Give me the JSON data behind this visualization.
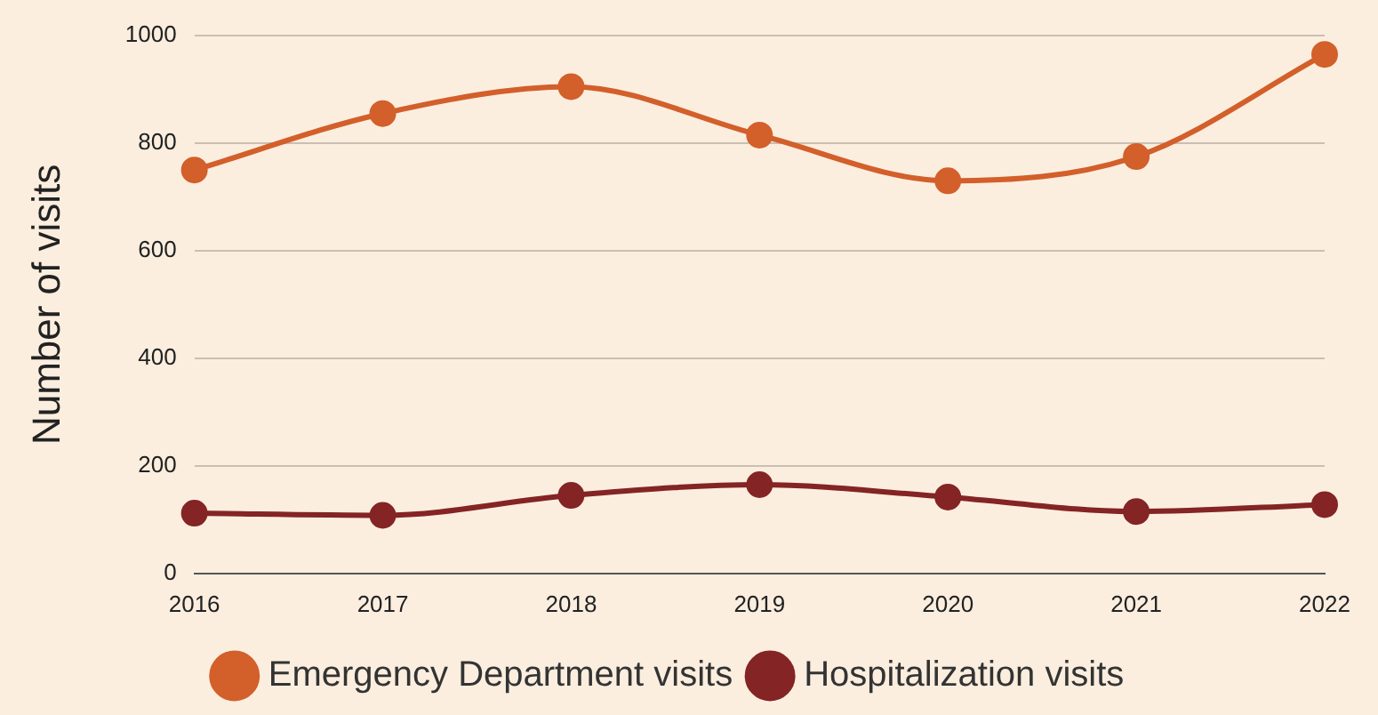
{
  "chart_data": {
    "type": "line",
    "ylabel": "Number of visits",
    "categories": [
      "2016",
      "2017",
      "2018",
      "2019",
      "2020",
      "2021",
      "2022"
    ],
    "series": [
      {
        "name": "Emergency Department visits",
        "color": "#d35f2a",
        "values": [
          750,
          855,
          905,
          815,
          730,
          775,
          965
        ]
      },
      {
        "name": "Hospitalization visits",
        "color": "#842424",
        "values": [
          112,
          108,
          145,
          165,
          142,
          115,
          128
        ]
      }
    ],
    "ylim": [
      0,
      1000
    ],
    "yticks": [
      0,
      200,
      400,
      600,
      800,
      1000
    ],
    "grid": "y",
    "legend": "bottom",
    "marker": "circle",
    "line_style": "solid"
  }
}
